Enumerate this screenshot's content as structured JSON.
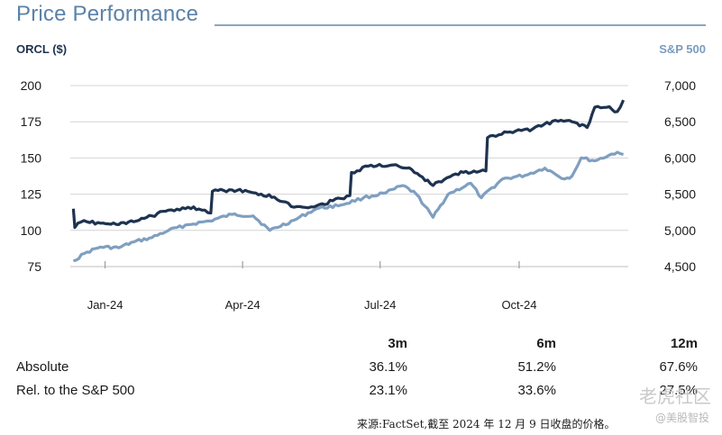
{
  "header": {
    "title": "Price Performance"
  },
  "chart_data": {
    "type": "line",
    "title": "Price Performance",
    "left_axis_label": "ORCL ($)",
    "right_axis_label": "S&P 500",
    "x_ticks": [
      "Jan-24",
      "Apr-24",
      "Jul-24",
      "Oct-24"
    ],
    "left_ticks": [
      200,
      175,
      150,
      125,
      100,
      75
    ],
    "right_ticks": [
      "7,000",
      "6,500",
      "6,000",
      "5,500",
      "5,000",
      "4,500"
    ],
    "left_ylim": [
      75,
      200
    ],
    "right_ylim": [
      4500,
      7000
    ],
    "grid": "horizontal",
    "colors": {
      "orcl": "#1e3350",
      "spx": "#7f9fc0"
    },
    "series": [
      {
        "axis": "left",
        "x": [
          "2023-12-11",
          "2023-12-12",
          "2023-12-14",
          "2023-12-20",
          "2023-12-29",
          "2024-01-10",
          "2024-01-20",
          "2024-02-01",
          "2024-02-12",
          "2024-02-25",
          "2024-03-05",
          "2024-03-11",
          "2024-03-12",
          "2024-03-25",
          "2024-04-08",
          "2024-04-22",
          "2024-05-05",
          "2024-05-20",
          "2024-06-05",
          "2024-06-11",
          "2024-06-12",
          "2024-06-25",
          "2024-07-08",
          "2024-07-22",
          "2024-08-05",
          "2024-08-20",
          "2024-09-01",
          "2024-09-09",
          "2024-09-10",
          "2024-09-25",
          "2024-10-10",
          "2024-10-25",
          "2024-11-05",
          "2024-11-15",
          "2024-11-20",
          "2024-11-28",
          "2024-12-05",
          "2024-12-09"
        ],
        "values": [
          115,
          102,
          105,
          106,
          105,
          104,
          106,
          110,
          114,
          116,
          114,
          112,
          127,
          128,
          126,
          123,
          116,
          117,
          122,
          124,
          140,
          145,
          145,
          142,
          131,
          139,
          141,
          141,
          164,
          168,
          170,
          176,
          175,
          171,
          185,
          185,
          182,
          190
        ]
      },
      {
        "axis": "right",
        "x": [
          "2023-12-11",
          "2023-12-20",
          "2023-12-29",
          "2024-01-10",
          "2024-01-20",
          "2024-02-01",
          "2024-02-12",
          "2024-02-25",
          "2024-03-10",
          "2024-03-25",
          "2024-04-08",
          "2024-04-19",
          "2024-05-05",
          "2024-05-20",
          "2024-06-05",
          "2024-06-20",
          "2024-07-05",
          "2024-07-16",
          "2024-07-25",
          "2024-08-05",
          "2024-08-15",
          "2024-08-30",
          "2024-09-06",
          "2024-09-20",
          "2024-10-05",
          "2024-10-18",
          "2024-10-31",
          "2024-11-05",
          "2024-11-11",
          "2024-11-20",
          "2024-12-05",
          "2024-12-09"
        ],
        "values": [
          4580,
          4700,
          4770,
          4760,
          4840,
          4900,
          5000,
          5080,
          5130,
          5220,
          5200,
          5000,
          5140,
          5300,
          5350,
          5450,
          5520,
          5620,
          5500,
          5180,
          5500,
          5650,
          5450,
          5710,
          5760,
          5860,
          5710,
          5750,
          6000,
          5960,
          6080,
          6050
        ]
      }
    ]
  },
  "table": {
    "columns": [
      "3m",
      "6m",
      "12m"
    ],
    "rows": [
      {
        "label": "Absolute",
        "values": [
          "36.1%",
          "51.2%",
          "67.6%"
        ]
      },
      {
        "label": "Rel. to the S&P 500",
        "values": [
          "23.1%",
          "33.6%",
          "27.5%"
        ]
      }
    ]
  },
  "footer": {
    "source": "来源:FactSet,截至 2024 年 12 月 9 日收盘的价格。"
  },
  "watermark": {
    "main": "老虎社区",
    "handle": "@美股智投"
  }
}
